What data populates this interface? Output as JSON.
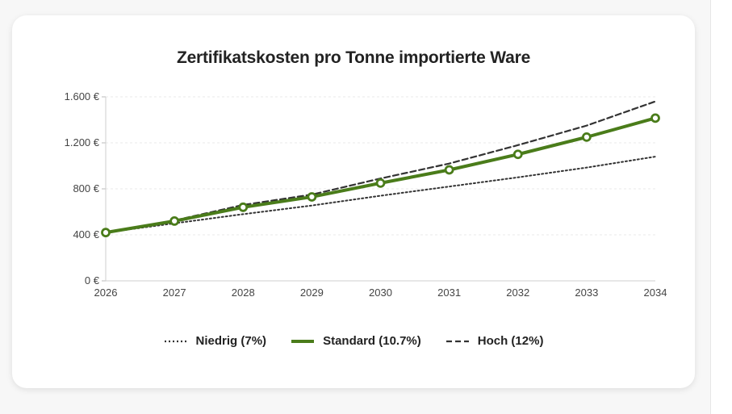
{
  "chart_data": {
    "type": "line",
    "title": "Zertifikatskosten pro Tonne importierte Ware",
    "xlabel": "",
    "ylabel": "",
    "x": [
      "2026",
      "2027",
      "2028",
      "2029",
      "2030",
      "2031",
      "2032",
      "2033",
      "2034"
    ],
    "ylim": [
      0,
      1600
    ],
    "yticks": [
      0,
      400,
      800,
      1200,
      1600
    ],
    "ytick_labels": [
      "0 €",
      "400 €",
      "800 €",
      "1.200 €",
      "1.600 €"
    ],
    "grid": true,
    "legend_position": "bottom",
    "series": [
      {
        "name": "Niedrig (7%)",
        "style": "dotted",
        "color": "#333333",
        "values": [
          420,
          500,
          580,
          655,
          740,
          820,
          900,
          985,
          1080
        ]
      },
      {
        "name": "Standard (10.7%)",
        "style": "solid",
        "color": "#4a7c1a",
        "markers": true,
        "values": [
          420,
          520,
          640,
          730,
          850,
          965,
          1100,
          1250,
          1415
        ]
      },
      {
        "name": "Hoch (12%)",
        "style": "dashed",
        "color": "#333333",
        "values": [
          420,
          525,
          660,
          750,
          890,
          1020,
          1180,
          1350,
          1560
        ]
      }
    ]
  }
}
